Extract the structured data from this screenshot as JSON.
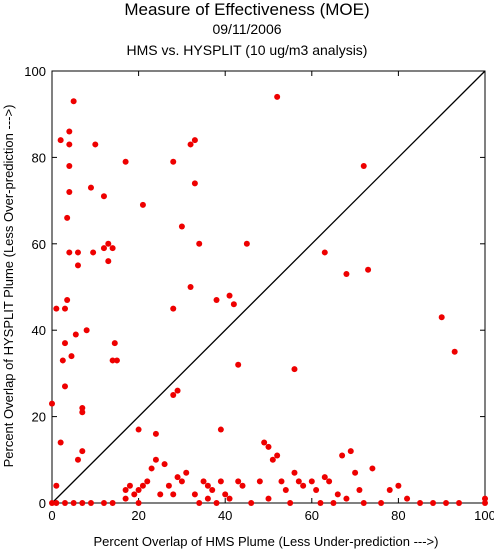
{
  "chart_data": {
    "type": "scatter",
    "title": "Measure of Effectiveness (MOE)",
    "subtitle_date": "09/11/2006",
    "subtitle_analysis": "HMS vs. HYSPLIT  (10 ug/m3 analysis)",
    "xlabel": "Percent Overlap of HMS Plume (Less Under-prediction --->)",
    "ylabel": "Percent Overlap of HYSPLIT Plume (Less Over-prediction --->)",
    "xlim": [
      0,
      100
    ],
    "ylim": [
      0,
      100
    ],
    "x_ticks": [
      0,
      20,
      40,
      60,
      80,
      100
    ],
    "y_ticks": [
      0,
      20,
      40,
      60,
      80,
      100
    ],
    "grid": false,
    "reference_line": "diagonal y = x",
    "marker_color": "#ee0000",
    "line_color": "#000000",
    "points": [
      [
        0,
        23
      ],
      [
        1,
        4
      ],
      [
        1,
        45
      ],
      [
        2,
        14
      ],
      [
        2,
        84
      ],
      [
        2.5,
        33
      ],
      [
        3,
        27
      ],
      [
        3,
        45
      ],
      [
        3,
        37
      ],
      [
        3.5,
        47
      ],
      [
        3.5,
        66
      ],
      [
        4,
        72
      ],
      [
        4,
        83
      ],
      [
        4,
        86
      ],
      [
        4,
        78
      ],
      [
        4,
        58
      ],
      [
        4.5,
        34
      ],
      [
        5,
        93
      ],
      [
        5.5,
        39
      ],
      [
        6,
        55
      ],
      [
        6,
        58
      ],
      [
        7,
        22
      ],
      [
        7,
        21
      ],
      [
        7,
        12
      ],
      [
        6,
        10
      ],
      [
        8,
        40
      ],
      [
        9,
        73
      ],
      [
        9.5,
        58
      ],
      [
        10,
        83
      ],
      [
        12,
        59
      ],
      [
        12,
        71
      ],
      [
        13,
        56
      ],
      [
        13,
        60
      ],
      [
        14,
        33
      ],
      [
        14,
        59
      ],
      [
        14.5,
        37
      ],
      [
        15,
        33
      ],
      [
        17,
        79
      ],
      [
        20,
        17
      ],
      [
        21,
        69
      ],
      [
        24,
        16
      ],
      [
        28,
        25
      ],
      [
        28,
        45
      ],
      [
        28,
        79
      ],
      [
        29,
        26
      ],
      [
        30,
        64
      ],
      [
        32,
        50
      ],
      [
        32,
        83
      ],
      [
        33,
        84
      ],
      [
        33,
        74
      ],
      [
        34,
        60
      ],
      [
        36,
        4
      ],
      [
        38,
        47
      ],
      [
        39,
        17
      ],
      [
        41,
        48
      ],
      [
        42,
        46
      ],
      [
        43,
        32
      ],
      [
        45,
        60
      ],
      [
        52,
        94
      ],
      [
        56,
        31
      ],
      [
        63,
        58
      ],
      [
        68,
        53
      ],
      [
        72,
        78
      ],
      [
        73,
        54
      ],
      [
        90,
        43
      ],
      [
        93,
        35
      ],
      [
        17,
        1
      ],
      [
        17,
        3
      ],
      [
        18,
        4
      ],
      [
        19,
        2
      ],
      [
        20,
        3
      ],
      [
        20,
        0
      ],
      [
        21,
        4
      ],
      [
        22,
        5
      ],
      [
        23,
        8
      ],
      [
        24,
        10
      ],
      [
        25,
        2
      ],
      [
        26,
        9
      ],
      [
        27,
        4
      ],
      [
        28,
        2
      ],
      [
        29,
        6
      ],
      [
        30,
        5
      ],
      [
        31,
        7
      ],
      [
        33,
        2
      ],
      [
        34,
        0
      ],
      [
        35,
        5
      ],
      [
        36,
        1
      ],
      [
        37,
        3
      ],
      [
        38,
        0
      ],
      [
        39,
        5
      ],
      [
        40,
        2
      ],
      [
        41,
        1
      ],
      [
        43,
        5
      ],
      [
        44,
        4
      ],
      [
        46,
        0
      ],
      [
        48,
        5
      ],
      [
        49,
        14
      ],
      [
        50,
        13
      ],
      [
        50,
        1
      ],
      [
        51,
        10
      ],
      [
        52,
        11
      ],
      [
        53,
        5
      ],
      [
        54,
        3
      ],
      [
        55,
        0
      ],
      [
        56,
        7
      ],
      [
        57,
        5
      ],
      [
        58,
        4
      ],
      [
        60,
        5
      ],
      [
        61,
        3
      ],
      [
        62,
        0
      ],
      [
        63,
        6
      ],
      [
        64,
        5
      ],
      [
        65,
        0
      ],
      [
        66,
        2
      ],
      [
        67,
        11
      ],
      [
        68,
        1
      ],
      [
        69,
        12
      ],
      [
        70,
        7
      ],
      [
        71,
        3
      ],
      [
        72,
        0
      ],
      [
        74,
        8
      ],
      [
        76,
        0
      ],
      [
        78,
        3
      ],
      [
        80,
        4
      ],
      [
        82,
        1
      ],
      [
        85,
        0
      ],
      [
        88,
        0
      ],
      [
        91,
        0
      ],
      [
        94,
        0
      ],
      [
        100,
        1
      ],
      [
        100,
        0
      ],
      [
        0,
        0
      ],
      [
        1,
        0
      ],
      [
        3,
        0
      ],
      [
        5,
        0
      ],
      [
        7,
        0
      ],
      [
        9,
        0
      ],
      [
        12,
        0
      ],
      [
        14,
        0
      ]
    ]
  }
}
